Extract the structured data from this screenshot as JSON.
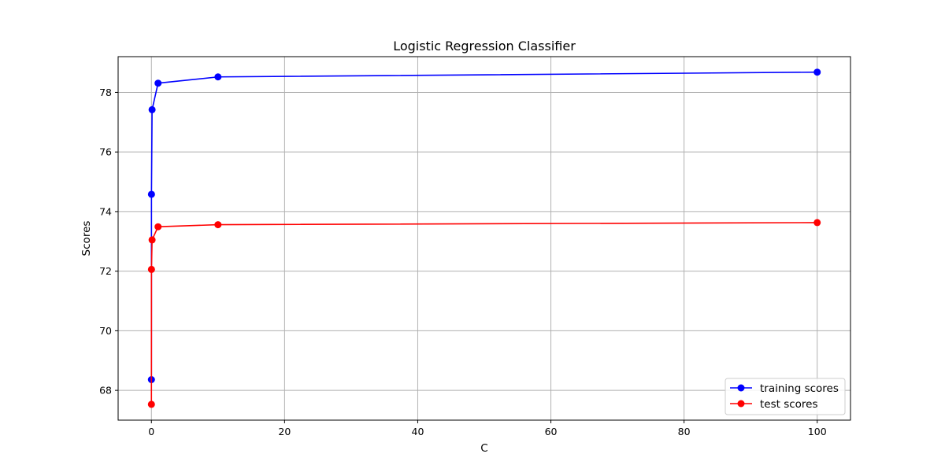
{
  "chart_data": {
    "type": "line",
    "title": "Logistic Regression Classifier",
    "xlabel": "C",
    "ylabel": "Scores",
    "xlim": [
      -5,
      105
    ],
    "ylim": [
      67.0,
      79.2
    ],
    "x_ticks": [
      0,
      20,
      40,
      60,
      80,
      100
    ],
    "y_ticks": [
      68,
      70,
      72,
      74,
      76,
      78
    ],
    "grid": true,
    "legend_position": "lower-right",
    "x": [
      0.001,
      0.01,
      0.1,
      1,
      10,
      100
    ],
    "series": [
      {
        "name": "training scores",
        "color": "#0000ff",
        "marker": "circle",
        "values": [
          68.36,
          74.58,
          77.42,
          78.31,
          78.52,
          78.68
        ]
      },
      {
        "name": "test scores",
        "color": "#ff0000",
        "marker": "circle",
        "values": [
          67.53,
          72.06,
          73.05,
          73.49,
          73.56,
          73.63
        ]
      }
    ]
  }
}
